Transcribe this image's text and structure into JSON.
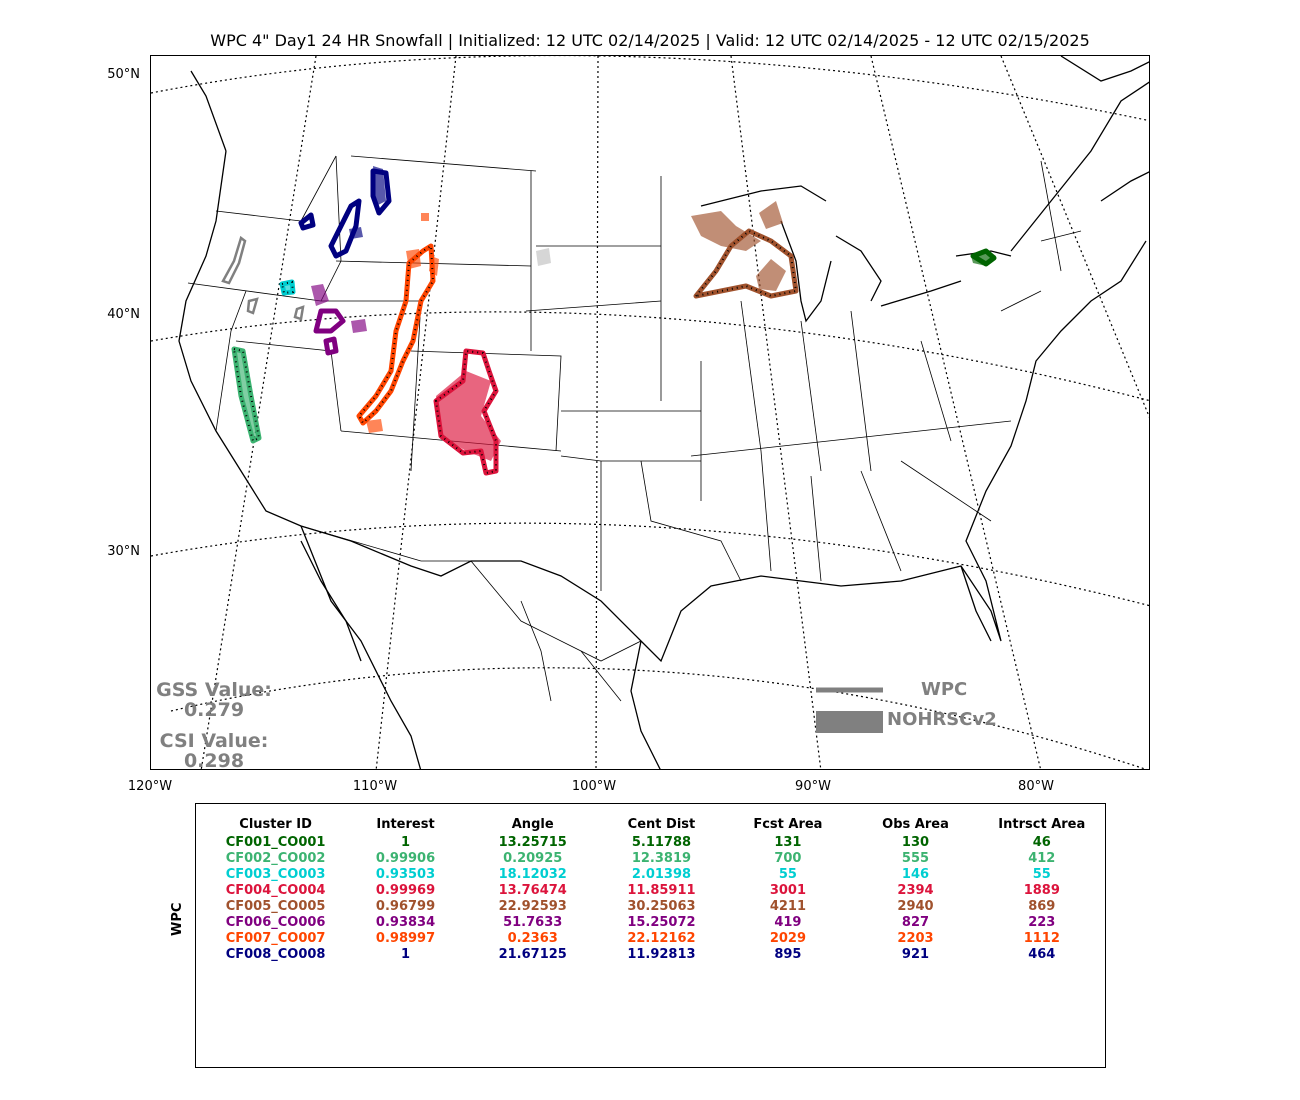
{
  "title": "WPC 4\" Day1 24 HR Snowfall | Initialized: 12 UTC 02/14/2025 | Valid: 12 UTC 02/14/2025 - 12 UTC 02/15/2025",
  "lat_labels": [
    "50°N",
    "40°N",
    "30°N"
  ],
  "lon_labels": [
    "120°W",
    "110°W",
    "100°W",
    "90°W",
    "80°W"
  ],
  "scores": {
    "gss_label": "GSS Value:",
    "gss_value": "0.279",
    "csi_label": "CSI Value:",
    "csi_value": "0.298"
  },
  "legend": {
    "forecast_label": "WPC",
    "observed_label": "NOHRSCv2",
    "color": "#808080"
  },
  "table": {
    "side_label": "WPC",
    "headers": [
      "Cluster ID",
      "Interest",
      "Angle",
      "Cent Dist",
      "Fcst Area",
      "Obs Area",
      "Intrsct Area"
    ],
    "rows": [
      {
        "color": "#006400",
        "cells": [
          "CF001_CO001",
          "1",
          "13.25715",
          "5.11788",
          "131",
          "130",
          "46"
        ]
      },
      {
        "color": "#3cb371",
        "cells": [
          "CF002_CO002",
          "0.99906",
          "0.20925",
          "12.3819",
          "700",
          "555",
          "412"
        ]
      },
      {
        "color": "#00ced1",
        "cells": [
          "CF003_CO003",
          "0.93503",
          "18.12032",
          "2.01398",
          "55",
          "146",
          "55"
        ]
      },
      {
        "color": "#dc143c",
        "cells": [
          "CF004_CO004",
          "0.99969",
          "13.76474",
          "11.85911",
          "3001",
          "2394",
          "1889"
        ]
      },
      {
        "color": "#a0522d",
        "cells": [
          "CF005_CO005",
          "0.96799",
          "22.92593",
          "30.25063",
          "4211",
          "2940",
          "869"
        ]
      },
      {
        "color": "#800080",
        "cells": [
          "CF006_CO006",
          "0.93834",
          "51.7633",
          "15.25072",
          "419",
          "827",
          "223"
        ]
      },
      {
        "color": "#ff4500",
        "cells": [
          "CF007_CO007",
          "0.98997",
          "0.2363",
          "22.12162",
          "2029",
          "2203",
          "1112"
        ]
      },
      {
        "color": "#000080",
        "cells": [
          "CF008_CO008",
          "1",
          "21.67125",
          "11.92813",
          "895",
          "921",
          "464"
        ]
      }
    ]
  }
}
